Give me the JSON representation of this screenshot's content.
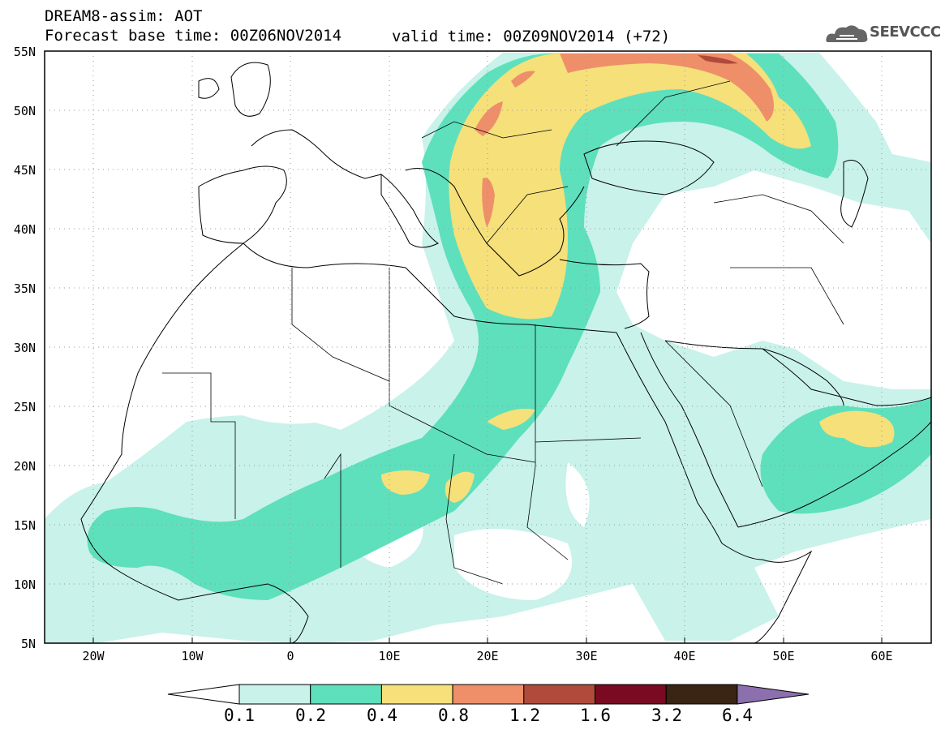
{
  "header": {
    "title": "DREAM8-assim: AOT",
    "base_time": "Forecast base time: 00Z06NOV2014",
    "valid_time": "valid time: 00Z09NOV2014 (+72)"
  },
  "logo": {
    "text": "SEEVCCC",
    "icon": "cloud-icon"
  },
  "map": {
    "lat_labels": [
      "55N",
      "50N",
      "45N",
      "40N",
      "35N",
      "30N",
      "25N",
      "20N",
      "15N",
      "10N",
      "5N"
    ],
    "lon_labels": [
      "20W",
      "10W",
      "0",
      "10E",
      "20E",
      "30E",
      "40E",
      "50E",
      "60E"
    ],
    "lat_range": [
      5,
      55
    ],
    "lon_range": [
      -25,
      65
    ],
    "grid": true
  },
  "colorbar": {
    "levels": [
      "0.1",
      "0.2",
      "0.4",
      "0.8",
      "1.2",
      "1.6",
      "3.2",
      "6.4"
    ],
    "colors": [
      "#ffffff",
      "#c8f2ea",
      "#5ee0bc",
      "#f5e07a",
      "#ee8f6a",
      "#b04a3a",
      "#7a0a22",
      "#3a2414",
      "#8c6fad"
    ]
  }
}
